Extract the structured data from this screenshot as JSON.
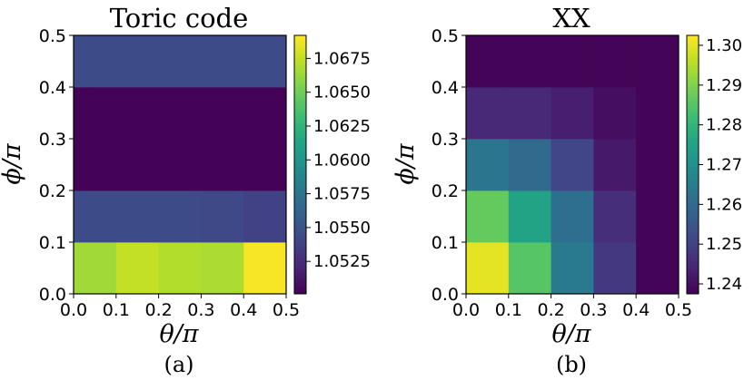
{
  "chart_data": [
    {
      "type": "heatmap",
      "title": "Toric code",
      "xlabel": "θ/π",
      "ylabel": "ϕ/π",
      "sublabel": "(a)",
      "x_ticks": [
        "0.0",
        "0.1",
        "0.2",
        "0.3",
        "0.4",
        "0.5"
      ],
      "y_ticks": [
        "0.0",
        "0.1",
        "0.2",
        "0.3",
        "0.4",
        "0.5"
      ],
      "x_edges": [
        0.0,
        0.1,
        0.2,
        0.3,
        0.4,
        0.5
      ],
      "y_edges": [
        0.0,
        0.1,
        0.2,
        0.4,
        0.5
      ],
      "values": [
        [
          1.0665,
          1.0675,
          1.067,
          1.0668,
          1.069
        ],
        [
          1.0545,
          1.0545,
          1.0545,
          1.0543,
          1.0538
        ],
        [
          1.0502,
          1.0502,
          1.0502,
          1.0502,
          1.0502
        ],
        [
          1.0545,
          1.0545,
          1.0545,
          1.0545,
          1.0545
        ]
      ],
      "colorbar": {
        "min": 1.0501,
        "max": 1.0692,
        "ticks": [
          "1.0525",
          "1.0550",
          "1.0575",
          "1.0600",
          "1.0625",
          "1.0650",
          "1.0675"
        ],
        "tick_values": [
          1.0525,
          1.055,
          1.0575,
          1.06,
          1.0625,
          1.065,
          1.0675
        ]
      }
    },
    {
      "type": "heatmap",
      "title": "XX",
      "xlabel": "θ/π",
      "ylabel": "ϕ/π",
      "sublabel": "(b)",
      "x_ticks": [
        "0.0",
        "0.1",
        "0.2",
        "0.3",
        "0.4",
        "0.5"
      ],
      "y_ticks": [
        "0.0",
        "0.1",
        "0.2",
        "0.3",
        "0.4",
        "0.5"
      ],
      "x_edges": [
        0.0,
        0.1,
        0.2,
        0.3,
        0.4,
        0.5
      ],
      "y_edges": [
        0.0,
        0.1,
        0.2,
        0.3,
        0.4,
        0.5
      ],
      "values": [
        [
          1.3,
          1.285,
          1.264,
          1.248,
          1.238
        ],
        [
          1.287,
          1.275,
          1.261,
          1.246,
          1.238
        ],
        [
          1.263,
          1.26,
          1.251,
          1.242,
          1.238
        ],
        [
          1.245,
          1.245,
          1.243,
          1.24,
          1.238
        ],
        [
          1.238,
          1.238,
          1.238,
          1.238,
          1.238
        ]
      ],
      "colorbar": {
        "min": 1.2375,
        "max": 1.3025,
        "ticks": [
          "1.24",
          "1.25",
          "1.26",
          "1.27",
          "1.28",
          "1.29",
          "1.30"
        ],
        "tick_values": [
          1.24,
          1.25,
          1.26,
          1.27,
          1.28,
          1.29,
          1.3
        ]
      }
    }
  ]
}
